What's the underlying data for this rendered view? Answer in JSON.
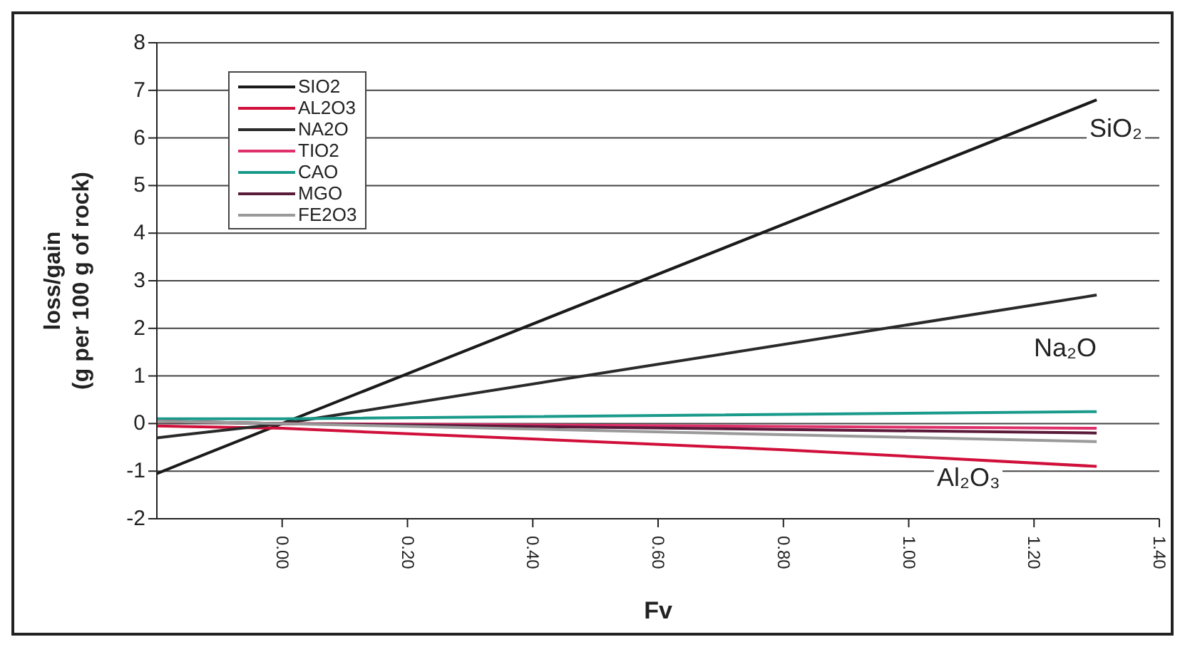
{
  "chart_data": {
    "type": "line",
    "xlabel": "Fv",
    "ylabel": "loss/gain\n(g per 100 g of rock)",
    "xlim": [
      -0.2,
      1.4
    ],
    "xticks": [
      {
        "value": 0,
        "label": "0.00"
      },
      {
        "value": 0.2,
        "label": "0.20"
      },
      {
        "value": 0.4,
        "label": "0.40"
      },
      {
        "value": 0.6,
        "label": "0.60"
      },
      {
        "value": 0.8,
        "label": "0.80"
      },
      {
        "value": 1,
        "label": "1.00"
      },
      {
        "value": 1.2,
        "label": "1.20"
      },
      {
        "value": 1.4,
        "label": "1.40"
      }
    ],
    "ylim": [
      -2,
      8
    ],
    "yticks": [
      -2,
      -1,
      0,
      1,
      2,
      3,
      4,
      5,
      6,
      7,
      8
    ],
    "grid": "y",
    "legend": "top left",
    "marker": "none",
    "line_style": "solid",
    "series": [
      {
        "name": "SIO2",
        "color": "#1a1a1a",
        "x": [
          -0.2,
          0,
          1.3
        ],
        "values": [
          -1.05,
          0,
          6.8
        ]
      },
      {
        "name": "AL2O3",
        "color": "#d0103a",
        "x": [
          -0.2,
          0,
          0.8,
          1.3
        ],
        "values": [
          -0.05,
          -0.1,
          -0.55,
          -0.9
        ]
      },
      {
        "name": "NA2O",
        "color": "#2a2a2a",
        "x": [
          -0.2,
          0,
          1.3
        ],
        "values": [
          -0.3,
          0,
          2.7
        ]
      },
      {
        "name": "TIO2",
        "color": "#e0306a",
        "x": [
          -0.2,
          0,
          1.3
        ],
        "values": [
          0.05,
          0,
          -0.1
        ]
      },
      {
        "name": "CAO",
        "color": "#1a9a8a",
        "x": [
          -0.2,
          0,
          1.3
        ],
        "values": [
          0.1,
          0.1,
          0.25
        ]
      },
      {
        "name": "MGO",
        "color": "#5a1a3a",
        "x": [
          -0.2,
          0,
          1.3
        ],
        "values": [
          0.05,
          0,
          -0.2
        ]
      },
      {
        "name": "FE2O3",
        "color": "#9a9a9a",
        "x": [
          -0.2,
          0,
          1.3
        ],
        "values": [
          0.05,
          0,
          -0.38
        ]
      }
    ],
    "annotations": [
      "SiO₂",
      "Na₂O",
      "Al₂O₃"
    ]
  }
}
